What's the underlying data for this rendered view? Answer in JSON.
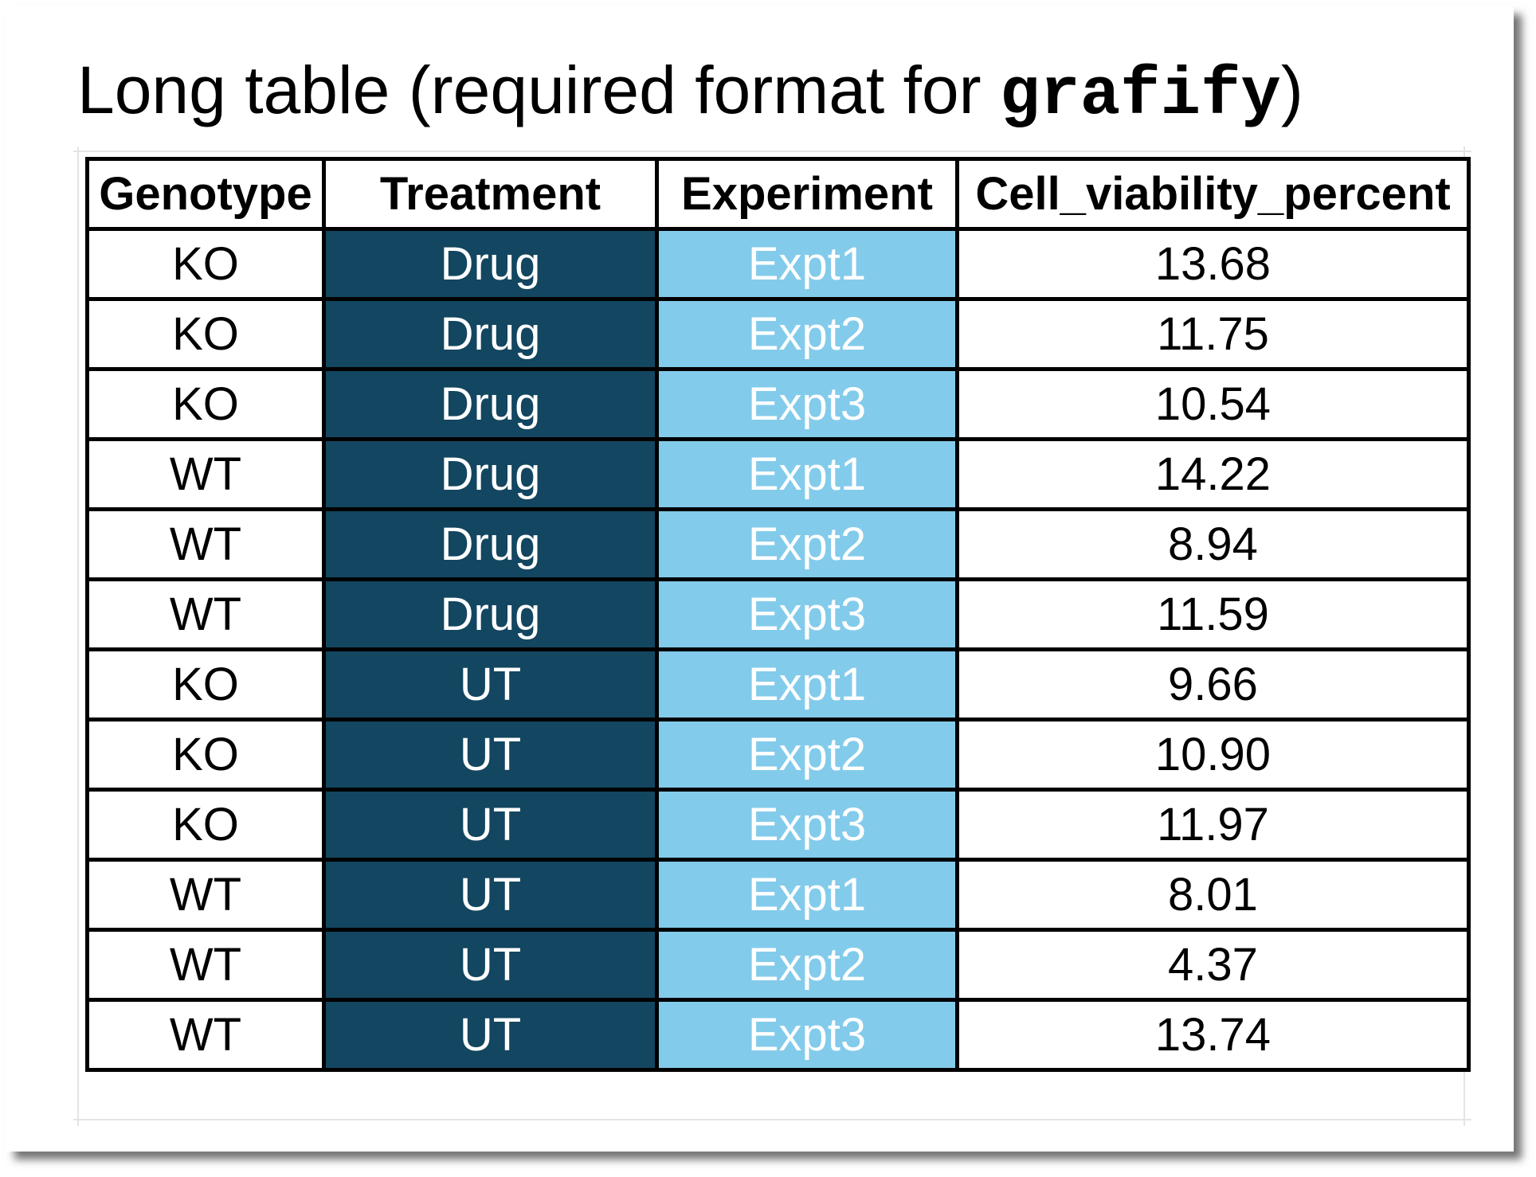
{
  "title": {
    "prefix": "Long table (required format for ",
    "code": "grafify",
    "suffix": ")"
  },
  "colors": {
    "treatment_fill": "#134660",
    "experiment_fill": "#83cbeb",
    "cell_text_light": "#ffffff",
    "border": "#000000"
  },
  "table": {
    "headers": [
      "Genotype",
      "Treatment",
      "Experiment",
      "Cell_viability_percent"
    ],
    "rows": [
      [
        "KO",
        "Drug",
        "Expt1",
        "13.68"
      ],
      [
        "KO",
        "Drug",
        "Expt2",
        "11.75"
      ],
      [
        "KO",
        "Drug",
        "Expt3",
        "10.54"
      ],
      [
        "WT",
        "Drug",
        "Expt1",
        "14.22"
      ],
      [
        "WT",
        "Drug",
        "Expt2",
        "8.94"
      ],
      [
        "WT",
        "Drug",
        "Expt3",
        "11.59"
      ],
      [
        "KO",
        "UT",
        "Expt1",
        "9.66"
      ],
      [
        "KO",
        "UT",
        "Expt2",
        "10.90"
      ],
      [
        "KO",
        "UT",
        "Expt3",
        "11.97"
      ],
      [
        "WT",
        "UT",
        "Expt1",
        "8.01"
      ],
      [
        "WT",
        "UT",
        "Expt2",
        "4.37"
      ],
      [
        "WT",
        "UT",
        "Expt3",
        "13.74"
      ]
    ]
  }
}
